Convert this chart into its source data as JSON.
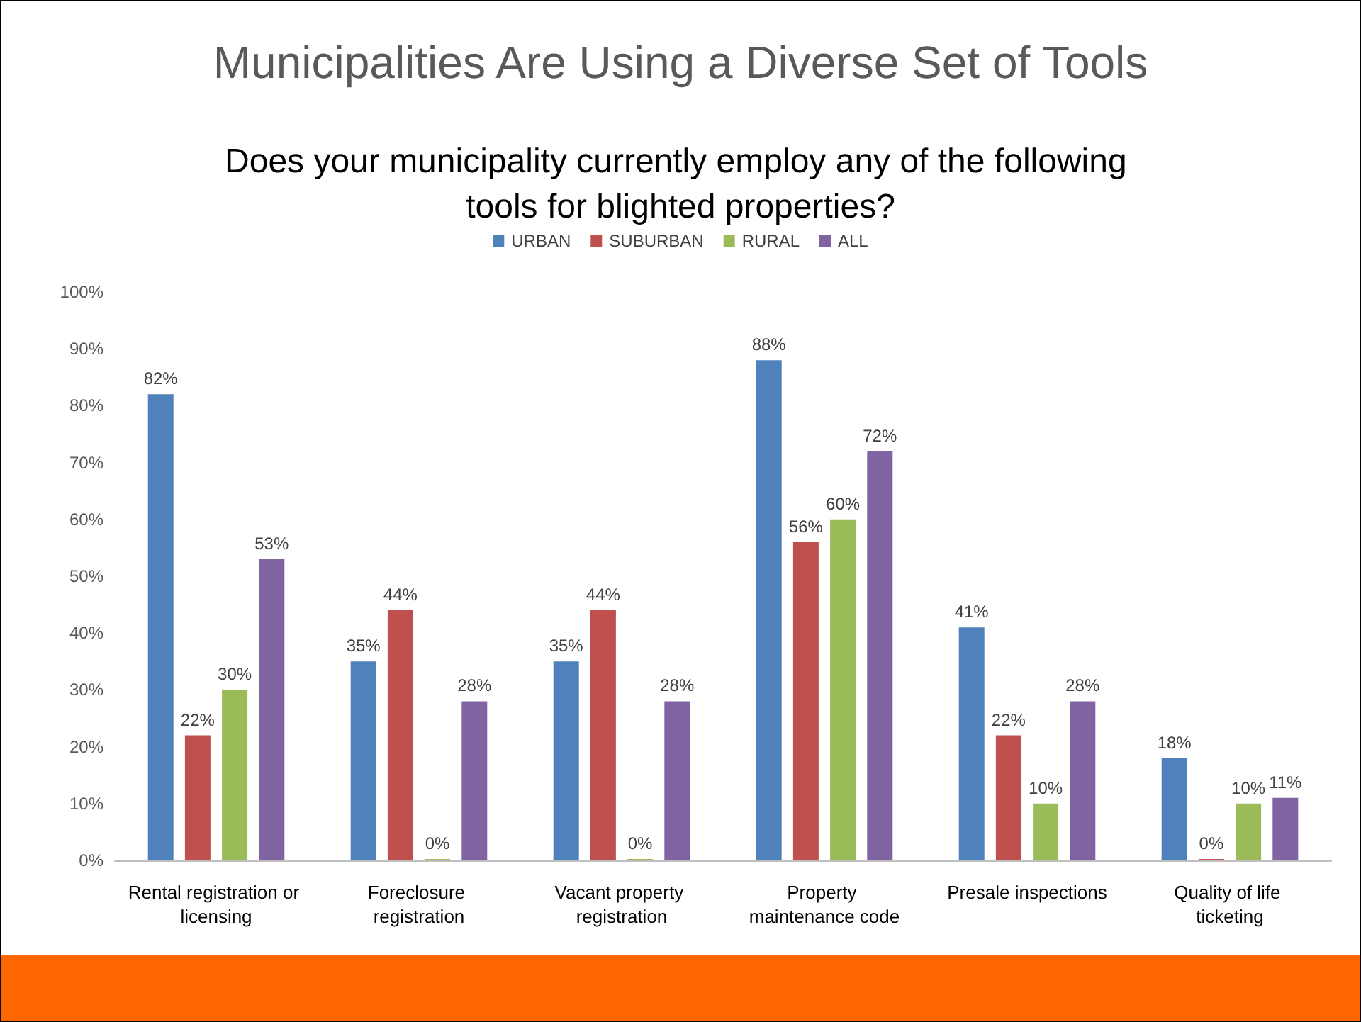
{
  "chart_data": {
    "type": "bar",
    "title": "Municipalities Are Using a Diverse Set of Tools",
    "subtitle": "Does your municipality currently employ any of the following tools for blighted properties?",
    "categories": [
      "Rental registration or licensing",
      "Foreclosure registration",
      "Vacant property registration",
      "Property maintenance code",
      "Presale inspections",
      "Quality of life ticketing"
    ],
    "series": [
      {
        "name": "URBAN",
        "color": "#4f81bd",
        "values": [
          82,
          35,
          35,
          88,
          41,
          18
        ],
        "value_labels": [
          "82%",
          "35%",
          "35%",
          "88%",
          "41%",
          "18%"
        ]
      },
      {
        "name": "SUBURBAN",
        "color": "#c0504d",
        "values": [
          22,
          44,
          44,
          56,
          22,
          0
        ],
        "value_labels": [
          "22%",
          "44%",
          "44%",
          "56%",
          "22%",
          "0%"
        ]
      },
      {
        "name": "RURAL",
        "color": "#9bbb59",
        "values": [
          30,
          0,
          0,
          60,
          10,
          10
        ],
        "value_labels": [
          "30%",
          "0%",
          "0%",
          "60%",
          "10%",
          "10%"
        ]
      },
      {
        "name": "ALL",
        "color": "#8064a2",
        "values": [
          53,
          28,
          28,
          72,
          28,
          11
        ],
        "value_labels": [
          "53%",
          "28%",
          "28%",
          "72%",
          "28%",
          "11%"
        ]
      }
    ],
    "ylim": [
      0,
      100
    ],
    "yticks": [
      {
        "value": 0,
        "label": "0%"
      },
      {
        "value": 10,
        "label": "10%"
      },
      {
        "value": 20,
        "label": "20%"
      },
      {
        "value": 30,
        "label": "30%"
      },
      {
        "value": 40,
        "label": "40%"
      },
      {
        "value": 50,
        "label": "50%"
      },
      {
        "value": 60,
        "label": "60%"
      },
      {
        "value": 70,
        "label": "70%"
      },
      {
        "value": 80,
        "label": "80%"
      },
      {
        "value": 90,
        "label": "90%"
      },
      {
        "value": 100,
        "label": "100%"
      }
    ],
    "grid": false,
    "legend": "top"
  }
}
